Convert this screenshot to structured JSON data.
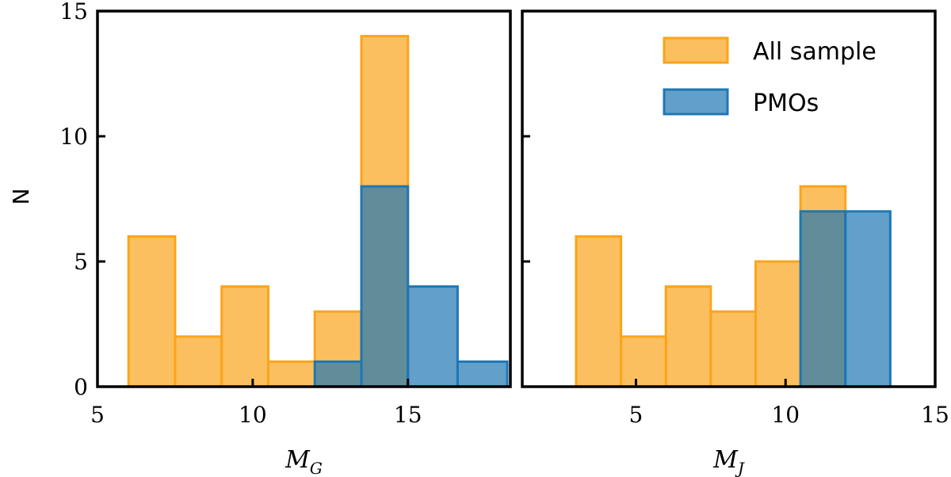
{
  "chart_data": [
    {
      "type": "bar",
      "panel": "left",
      "xlabel_main": "M",
      "xlabel_sub": "G",
      "ylabel": "N",
      "xlim": [
        5,
        18.3
      ],
      "ylim": [
        0,
        15
      ],
      "xticks": [
        5,
        10,
        15
      ],
      "yticks": [
        0,
        5,
        10,
        15
      ],
      "series": [
        {
          "name": "All sample",
          "color": "#FBA41B",
          "bins": [
            {
              "x0": 6.0,
              "x1": 7.5,
              "count": 6
            },
            {
              "x0": 7.5,
              "x1": 9.0,
              "count": 2
            },
            {
              "x0": 9.0,
              "x1": 10.5,
              "count": 4
            },
            {
              "x0": 10.5,
              "x1": 12.0,
              "count": 1
            },
            {
              "x0": 12.0,
              "x1": 13.5,
              "count": 3
            },
            {
              "x0": 13.5,
              "x1": 15.0,
              "count": 14
            }
          ]
        },
        {
          "name": "PMOs",
          "color": "#1F77B4",
          "bins": [
            {
              "x0": 12.0,
              "x1": 13.5,
              "count": 1
            },
            {
              "x0": 13.5,
              "x1": 15.0,
              "count": 8
            },
            {
              "x0": 15.0,
              "x1": 16.6,
              "count": 4
            },
            {
              "x0": 16.6,
              "x1": 18.2,
              "count": 1
            }
          ]
        }
      ]
    },
    {
      "type": "bar",
      "panel": "right",
      "xlabel_main": "M",
      "xlabel_sub": "J",
      "xlim": [
        1.2,
        15
      ],
      "ylim": [
        0,
        15
      ],
      "xticks": [
        5,
        10,
        15
      ],
      "yticks": [
        0,
        5,
        10,
        15
      ],
      "series": [
        {
          "name": "All sample",
          "color": "#FBA41B",
          "bins": [
            {
              "x0": 3.0,
              "x1": 4.5,
              "count": 6
            },
            {
              "x0": 4.5,
              "x1": 6.0,
              "count": 2
            },
            {
              "x0": 6.0,
              "x1": 7.5,
              "count": 4
            },
            {
              "x0": 7.5,
              "x1": 9.0,
              "count": 3
            },
            {
              "x0": 9.0,
              "x1": 10.5,
              "count": 5
            },
            {
              "x0": 10.5,
              "x1": 12.0,
              "count": 8
            }
          ]
        },
        {
          "name": "PMOs",
          "color": "#1F77B4",
          "bins": [
            {
              "x0": 10.5,
              "x1": 12.0,
              "count": 7
            },
            {
              "x0": 12.0,
              "x1": 13.5,
              "count": 7
            }
          ]
        }
      ]
    }
  ],
  "legend": {
    "position": "top-right",
    "entries": [
      {
        "label": "All sample",
        "color": "#FBA41B"
      },
      {
        "label": "PMOs",
        "color": "#1F77B4"
      }
    ]
  }
}
